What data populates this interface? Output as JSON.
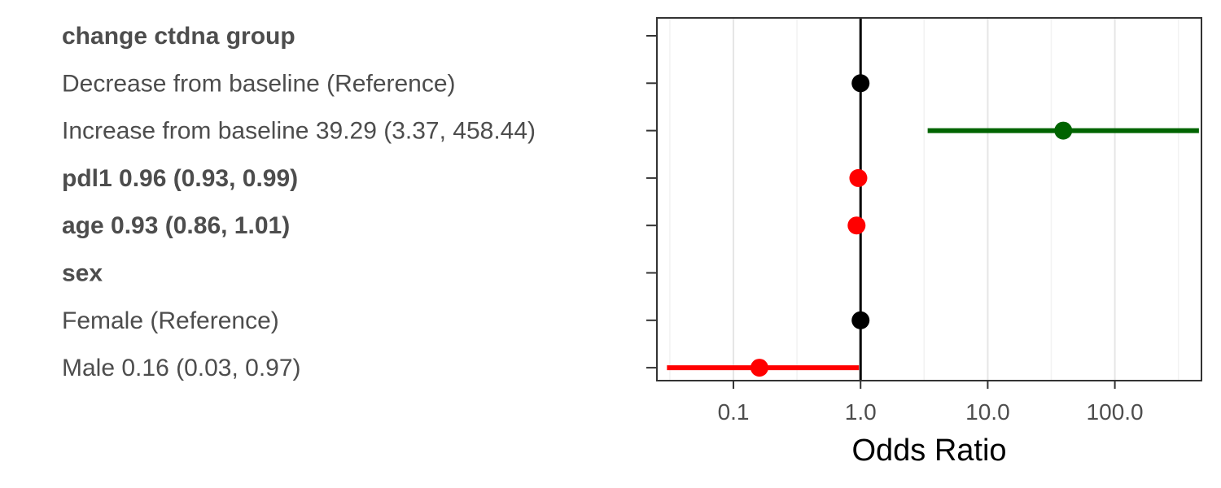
{
  "chart_data": {
    "type": "forest",
    "xlabel": "Odds Ratio",
    "x_scale": "log10",
    "xlim": [
      0.025,
      480
    ],
    "x_ticks": [
      {
        "value": 0.1,
        "label": "0.1"
      },
      {
        "value": 1,
        "label": "1.0"
      },
      {
        "value": 10,
        "label": "10.0"
      },
      {
        "value": 100,
        "label": "100.0"
      }
    ],
    "reference_line": 1,
    "grid": true,
    "colors": {
      "reference": "#000000",
      "above_one": "#006400",
      "below_one": "#ff0000"
    },
    "rows": [
      {
        "label": "change ctdna group",
        "bold": true,
        "estimate": null,
        "lower": null,
        "upper": null
      },
      {
        "label": "Decrease from baseline (Reference)",
        "bold": false,
        "estimate": 1,
        "lower": null,
        "upper": null,
        "kind": "reference"
      },
      {
        "label": "Increase from baseline 39.29 (3.37, 458.44)",
        "bold": false,
        "estimate": 39.29,
        "lower": 3.37,
        "upper": 458.44,
        "kind": "above_one"
      },
      {
        "label": "pdl1 0.96 (0.93, 0.99)",
        "bold": true,
        "estimate": 0.96,
        "lower": 0.93,
        "upper": 0.99,
        "kind": "below_one"
      },
      {
        "label": "age 0.93 (0.86, 1.01)",
        "bold": true,
        "estimate": 0.93,
        "lower": 0.86,
        "upper": 1.01,
        "kind": "below_one"
      },
      {
        "label": "sex",
        "bold": true,
        "estimate": null,
        "lower": null,
        "upper": null
      },
      {
        "label": "Female (Reference)",
        "bold": false,
        "estimate": 1,
        "lower": null,
        "upper": null,
        "kind": "reference"
      },
      {
        "label": "Male 0.16 (0.03, 0.97)",
        "bold": false,
        "estimate": 0.16,
        "lower": 0.03,
        "upper": 0.97,
        "kind": "below_one"
      }
    ]
  }
}
